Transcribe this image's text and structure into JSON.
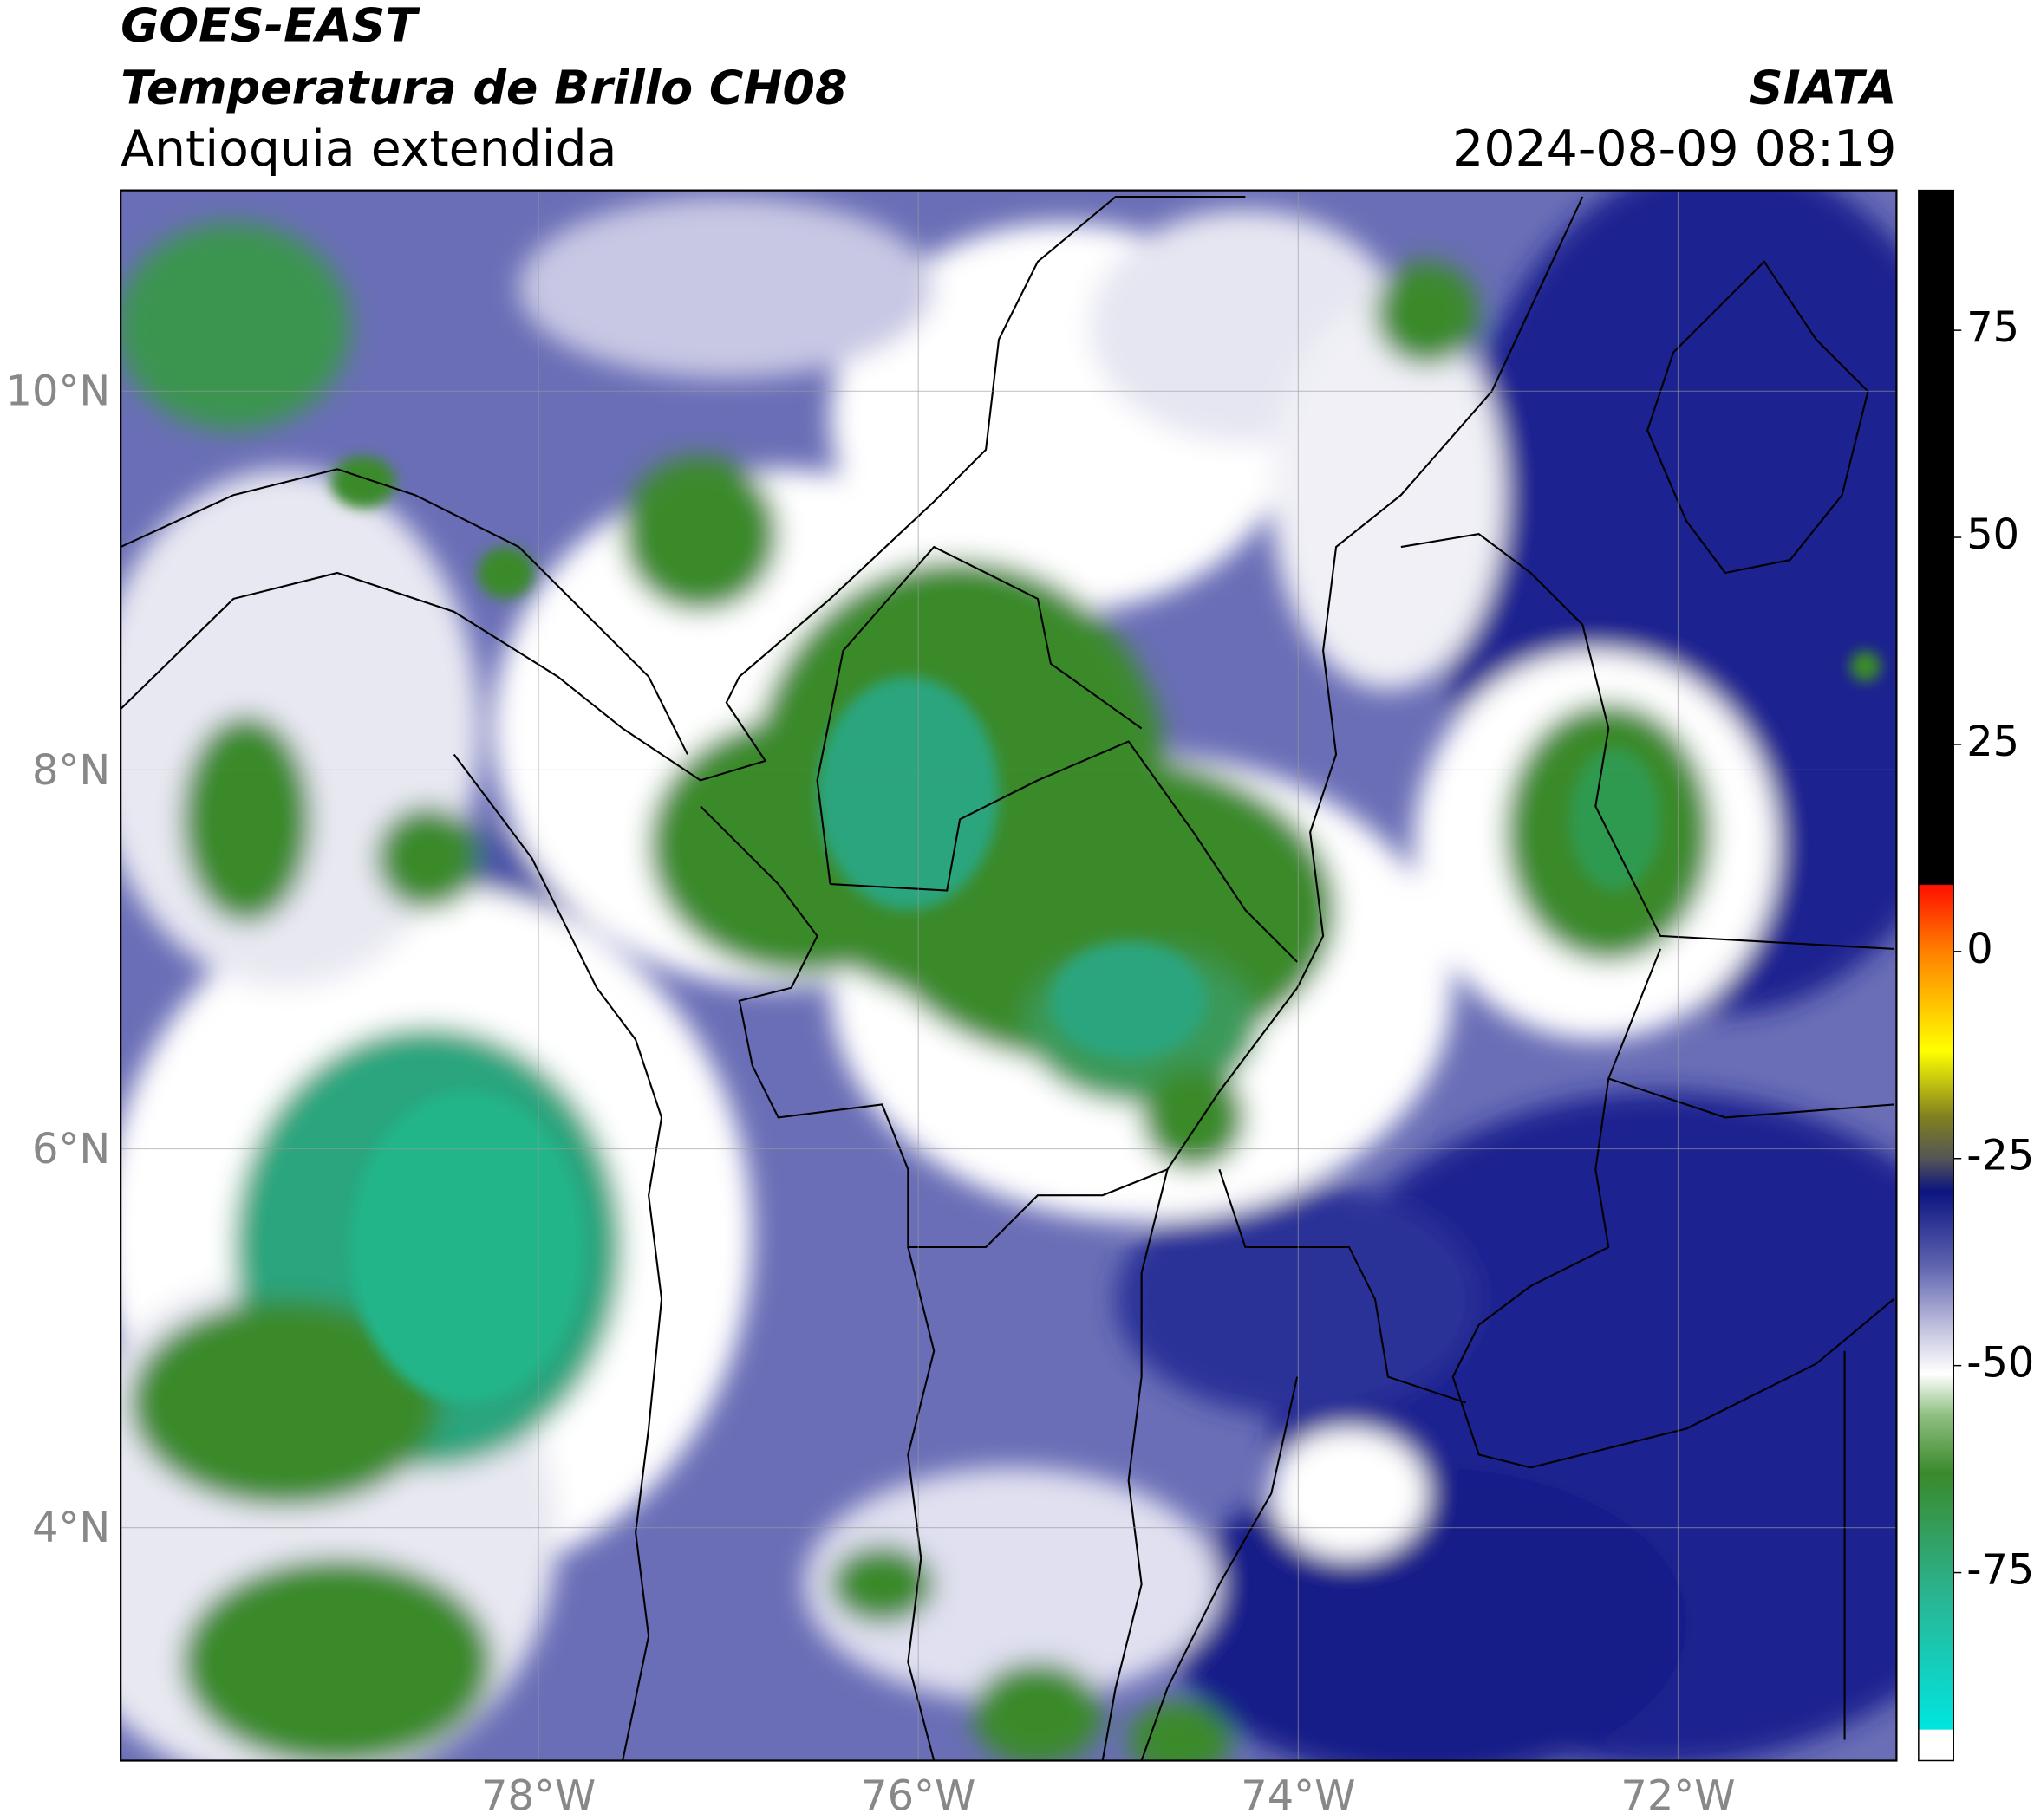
{
  "chart_data": {
    "type": "map",
    "title": "GOES-EAST",
    "subtitle": "Temperatura de Brillo CH08",
    "region": "Antioquia extendida",
    "source": "SIATA",
    "datetime": "2024-08-09 08:19",
    "xlim": [
      -80.2,
      -70.85
    ],
    "ylim": [
      2.77,
      11.06
    ],
    "xticks": [
      {
        "value": -78,
        "label": "78°W"
      },
      {
        "value": -76,
        "label": "76°W"
      },
      {
        "value": -74,
        "label": "74°W"
      },
      {
        "value": -72,
        "label": "72°W"
      }
    ],
    "yticks": [
      {
        "value": 4,
        "label": "4°N"
      },
      {
        "value": 6,
        "label": "6°N"
      },
      {
        "value": 8,
        "label": "8°N"
      },
      {
        "value": 10,
        "label": "10°N"
      }
    ],
    "grid": true,
    "colorbar": {
      "clim": [
        -97.7,
        91.9
      ],
      "ticks": [
        -75,
        -50,
        -25,
        0,
        25,
        50,
        75
      ],
      "stops": [
        {
          "value": -97.7,
          "color": "#ffffff"
        },
        {
          "value": -94,
          "color": "#ffffff"
        },
        {
          "value": -93.9,
          "color": "#00e5e0"
        },
        {
          "value": -78,
          "color": "#2ab593"
        },
        {
          "value": -63,
          "color": "#3a8a2c"
        },
        {
          "value": -56,
          "color": "#8fbf80"
        },
        {
          "value": -51,
          "color": "#ffffff"
        },
        {
          "value": -46,
          "color": "#c8c8e2"
        },
        {
          "value": -38,
          "color": "#6064b0"
        },
        {
          "value": -29,
          "color": "#0c1480"
        },
        {
          "value": -25,
          "color": "#555555"
        },
        {
          "value": -20,
          "color": "#808020"
        },
        {
          "value": -12,
          "color": "#ffff00"
        },
        {
          "value": 0,
          "color": "#ff8000"
        },
        {
          "value": 8,
          "color": "#ff1000"
        },
        {
          "value": 8.1,
          "color": "#000000"
        },
        {
          "value": 91.9,
          "color": "#000000"
        }
      ]
    }
  }
}
